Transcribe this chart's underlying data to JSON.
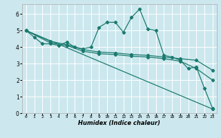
{
  "title": "",
  "xlabel": "Humidex (Indice chaleur)",
  "ylabel": "",
  "bg_color": "#cce8ee",
  "grid_color": "#ffffff",
  "line_color": "#1a7a6e",
  "xlim": [
    -0.5,
    23.5
  ],
  "ylim": [
    0,
    6.6
  ],
  "yticks": [
    0,
    1,
    2,
    3,
    4,
    5,
    6
  ],
  "xticks": [
    0,
    1,
    2,
    3,
    4,
    5,
    6,
    7,
    8,
    9,
    10,
    11,
    12,
    13,
    14,
    15,
    16,
    17,
    18,
    19,
    20,
    21,
    22,
    23
  ],
  "series": {
    "line1": {
      "x": [
        0,
        1,
        2,
        3,
        4,
        5,
        6,
        7,
        8,
        9,
        10,
        11,
        12,
        13,
        14,
        15,
        16,
        17,
        18,
        19,
        20,
        21,
        22,
        23
      ],
      "y": [
        5.0,
        4.6,
        4.2,
        4.2,
        4.1,
        4.3,
        4.0,
        3.9,
        4.0,
        5.2,
        5.5,
        5.5,
        4.9,
        5.8,
        6.3,
        5.1,
        5.0,
        3.5,
        3.4,
        3.2,
        2.7,
        2.8,
        1.5,
        0.3
      ]
    },
    "line2": {
      "x": [
        0,
        3,
        5,
        7,
        9,
        11,
        13,
        15,
        17,
        19,
        21,
        23
      ],
      "y": [
        5.0,
        4.35,
        4.15,
        3.85,
        3.7,
        3.65,
        3.55,
        3.5,
        3.4,
        3.3,
        3.2,
        2.6
      ]
    },
    "line3": {
      "x": [
        0,
        3,
        5,
        7,
        9,
        11,
        13,
        15,
        17,
        19,
        21,
        23
      ],
      "y": [
        5.0,
        4.25,
        4.1,
        3.75,
        3.6,
        3.55,
        3.45,
        3.4,
        3.3,
        3.15,
        2.7,
        2.0
      ]
    },
    "line4": {
      "x": [
        0,
        23
      ],
      "y": [
        5.0,
        0.25
      ]
    }
  }
}
